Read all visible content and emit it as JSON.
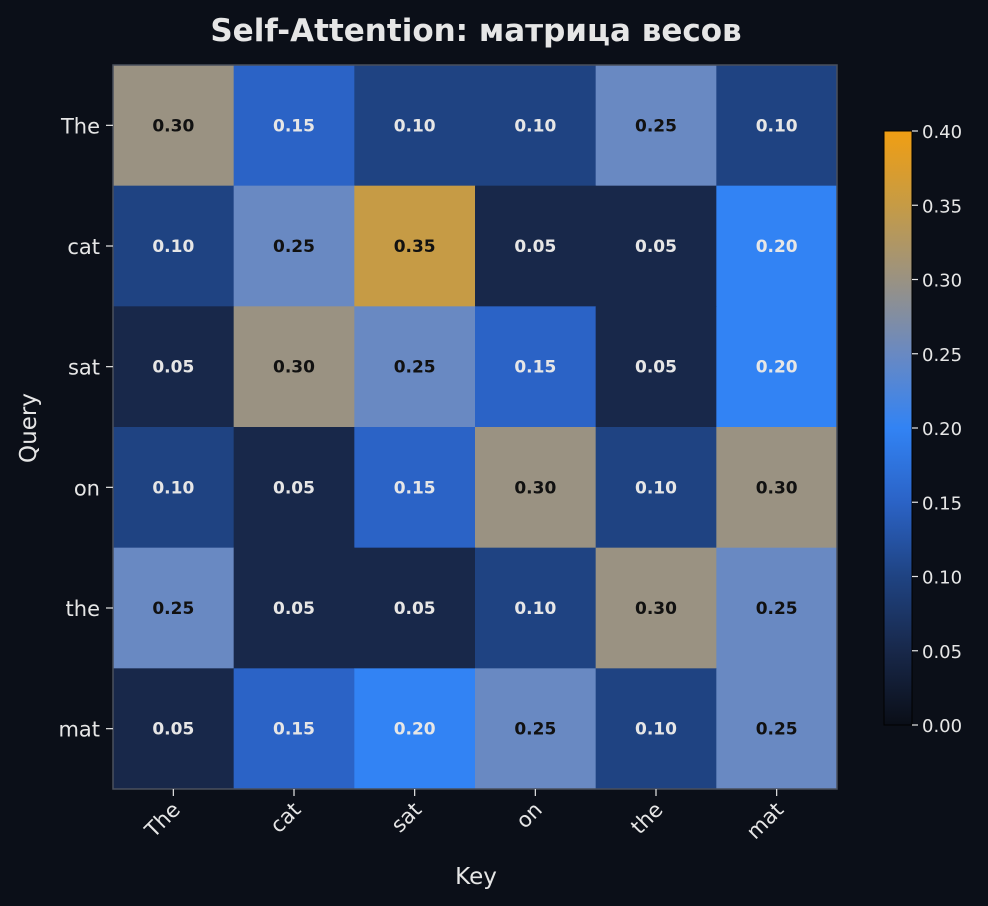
{
  "chart_data": {
    "type": "heatmap",
    "title": "Self-Attention: матрица весов",
    "xlabel": "Key",
    "ylabel": "Query",
    "x_categories": [
      "The",
      "cat",
      "sat",
      "on",
      "the",
      "mat"
    ],
    "y_categories": [
      "The",
      "cat",
      "sat",
      "on",
      "the",
      "mat"
    ],
    "values": [
      [
        0.3,
        0.15,
        0.1,
        0.1,
        0.25,
        0.1
      ],
      [
        0.1,
        0.25,
        0.35,
        0.05,
        0.05,
        0.2
      ],
      [
        0.05,
        0.3,
        0.25,
        0.15,
        0.05,
        0.2
      ],
      [
        0.1,
        0.05,
        0.15,
        0.3,
        0.1,
        0.3
      ],
      [
        0.25,
        0.05,
        0.05,
        0.1,
        0.3,
        0.25
      ],
      [
        0.05,
        0.15,
        0.2,
        0.25,
        0.1,
        0.25
      ]
    ],
    "value_labels": [
      [
        "0.30",
        "0.15",
        "0.10",
        "0.10",
        "0.25",
        "0.10"
      ],
      [
        "0.10",
        "0.25",
        "0.35",
        "0.05",
        "0.05",
        "0.20"
      ],
      [
        "0.05",
        "0.30",
        "0.25",
        "0.15",
        "0.05",
        "0.20"
      ],
      [
        "0.10",
        "0.05",
        "0.15",
        "0.30",
        "0.10",
        "0.30"
      ],
      [
        "0.25",
        "0.05",
        "0.05",
        "0.10",
        "0.30",
        "0.25"
      ],
      [
        "0.05",
        "0.15",
        "0.20",
        "0.25",
        "0.10",
        "0.25"
      ]
    ],
    "colorbar": {
      "range": [
        0.0,
        0.4
      ],
      "ticks": [
        0.0,
        0.05,
        0.1,
        0.15,
        0.2,
        0.25,
        0.3,
        0.35,
        0.4
      ],
      "tick_labels": [
        "0.00",
        "0.05",
        "0.10",
        "0.15",
        "0.20",
        "0.25",
        "0.30",
        "0.35",
        "0.40"
      ]
    },
    "colormap": [
      {
        "value": 0.0,
        "color": "#0a0e17"
      },
      {
        "value": 0.05,
        "color": "#18284a"
      },
      {
        "value": 0.1,
        "color": "#1f4382"
      },
      {
        "value": 0.15,
        "color": "#2b63c6"
      },
      {
        "value": 0.2,
        "color": "#3283f4"
      },
      {
        "value": 0.25,
        "color": "#6989c2"
      },
      {
        "value": 0.3,
        "color": "#9a9282"
      },
      {
        "value": 0.35,
        "color": "#c69b45"
      },
      {
        "value": 0.4,
        "color": "#f09e13"
      }
    ],
    "text_color_light": "#e6e6e6",
    "text_color_dark": "#111111",
    "background": "#0b0f18"
  }
}
